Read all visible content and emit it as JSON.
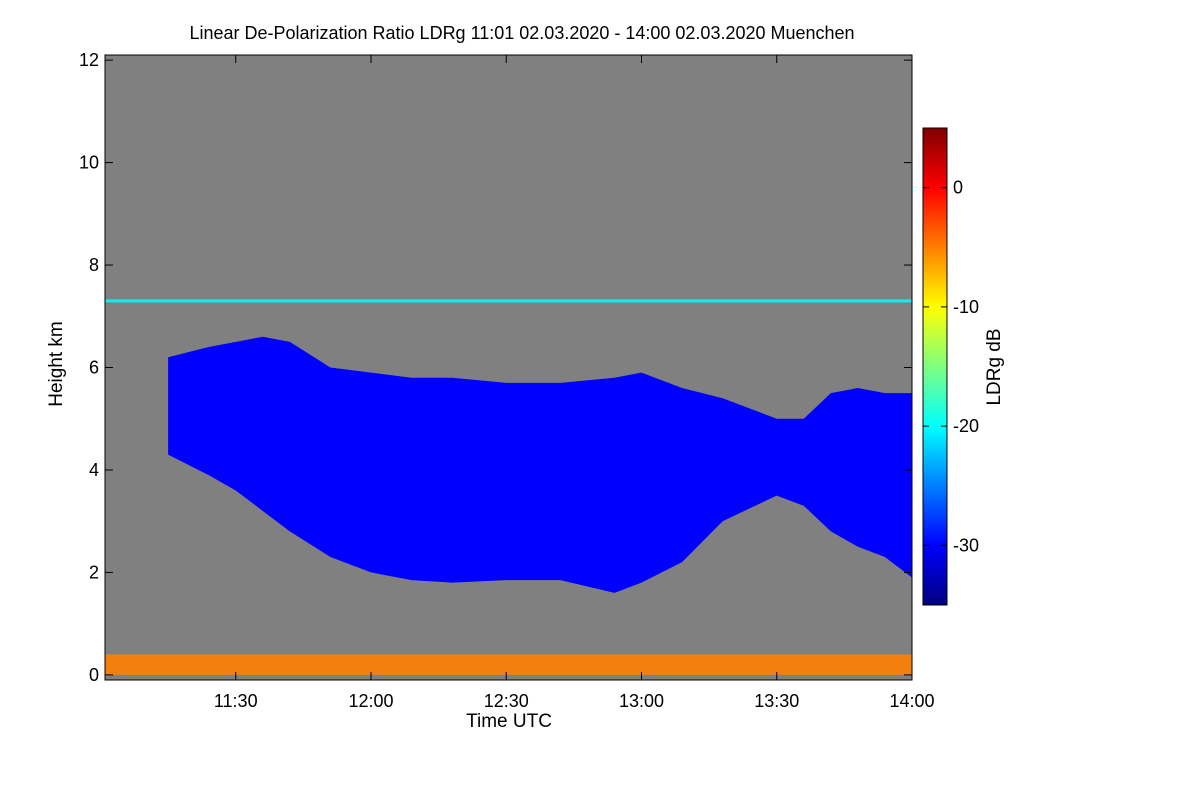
{
  "chart_data": {
    "type": "heatmap",
    "title": "Linear De-Polarization Ratio LDRg   11:01 02.03.2020 - 14:00 02.03.2020 Muenchen",
    "xlabel": "Time UTC",
    "ylabel": "Height km",
    "colorbar_label": "LDRg dB",
    "x_ticks": [
      "11:30",
      "12:00",
      "12:30",
      "13:00",
      "13:30",
      "14:00"
    ],
    "x_tick_values_hours": [
      11.5,
      12.0,
      12.5,
      13.0,
      13.5,
      14.0
    ],
    "xlim_hours": [
      11.0167,
      14.0
    ],
    "y_ticks": [
      "0",
      "2",
      "4",
      "6",
      "8",
      "10",
      "12"
    ],
    "y_tick_values": [
      0,
      2,
      4,
      6,
      8,
      10,
      12
    ],
    "ylim": [
      -0.1,
      12.1
    ],
    "colorbar_ticks": [
      "0",
      "-10",
      "-20",
      "-30"
    ],
    "colorbar_tick_values": [
      0,
      -10,
      -20,
      -30
    ],
    "colorbar_range": [
      -35,
      5
    ],
    "colormap": [
      "#00007f",
      "#0000ff",
      "#007fff",
      "#00ffff",
      "#7fff7f",
      "#ffff00",
      "#ff7f00",
      "#ff0000",
      "#7f0000"
    ],
    "nodata_color": "#808080",
    "cloud": {
      "ldr_db": -30,
      "time_hours": [
        11.25,
        11.4,
        11.5,
        11.6,
        11.7,
        11.85,
        12.0,
        12.15,
        12.3,
        12.5,
        12.7,
        12.9,
        13.0,
        13.15,
        13.3,
        13.5,
        13.6,
        13.7,
        13.8,
        13.9,
        14.0
      ],
      "top_km": [
        6.2,
        6.4,
        6.5,
        6.6,
        6.5,
        6.0,
        5.9,
        5.8,
        5.8,
        5.7,
        5.7,
        5.8,
        5.9,
        5.6,
        5.4,
        5.0,
        5.0,
        5.5,
        5.6,
        5.5,
        5.5
      ],
      "base_km": [
        4.3,
        3.9,
        3.6,
        3.2,
        2.8,
        2.3,
        2.0,
        1.85,
        1.8,
        1.85,
        1.85,
        1.6,
        1.8,
        2.2,
        3.0,
        3.5,
        3.3,
        2.8,
        2.5,
        2.3,
        1.9
      ]
    },
    "upper_layer": {
      "ldr_db": -22,
      "height_km": 7.3,
      "time_hours": [
        11.0167,
        14.0
      ]
    },
    "surface_layer": {
      "ldr_db": -5,
      "height_km": [
        0,
        0.4
      ],
      "time_hours": [
        11.0167,
        14.0
      ]
    },
    "grid": false,
    "legend": "right colorbar"
  }
}
